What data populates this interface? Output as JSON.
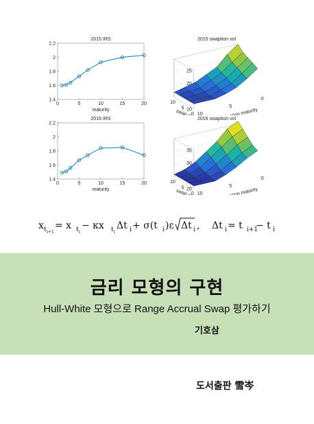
{
  "cover": {
    "title": "금리 모형의 구현",
    "subtitle": "Hull-White 모형으로 Range Accrual Swap 평가하기",
    "author": "기호삼",
    "publisher": "도서출판 雪岑"
  },
  "equation": {
    "lhs": "x",
    "lhs_sub": "t",
    "lhs_subsub": "i+1",
    "eq1": " = x",
    "t1_sub": "t",
    "t1_subsub": "i",
    "minus_k": " − κx",
    "t2_sub": "t",
    "t2_subsub": "i",
    "dt_sigma": "Δt",
    "dt_sigma_sub": "i",
    "plus_sigma": " + σ(t",
    "sigma_sub": "i",
    "sigma_close": ")ε",
    "sqrt_dt": "Δt",
    "sqrt_dt_sub": "i",
    "comma": ",",
    "def_lhs": "Δt",
    "def_lhs_sub": "i",
    "def_eq": " = t",
    "def_t1_sub": "i+1",
    "def_minus": " − t",
    "def_t2_sub": "i"
  },
  "chart_data": [
    {
      "type": "line",
      "title": "2015 IRS",
      "xlabel": "maturity",
      "ylabel": "",
      "x": [
        1,
        2,
        3,
        5,
        7,
        10,
        15,
        20
      ],
      "values": [
        1.6,
        1.61,
        1.64,
        1.73,
        1.82,
        1.93,
        2.0,
        2.03
      ],
      "xlim": [
        0,
        20
      ],
      "ylim": [
        1.4,
        2.2
      ],
      "xticks": [
        "0",
        "5",
        "10",
        "15",
        "20"
      ],
      "yticks": [
        "1.4",
        "1.6",
        "1.8",
        "2",
        "2.2"
      ],
      "color": "#0072bd"
    },
    {
      "type": "line",
      "title": "2016 IRS",
      "xlabel": "maturity",
      "ylabel": "",
      "x": [
        1,
        2,
        3,
        5,
        7,
        10,
        15,
        20
      ],
      "values": [
        1.49,
        1.51,
        1.56,
        1.67,
        1.74,
        1.84,
        1.85,
        1.74
      ],
      "xlim": [
        0,
        20
      ],
      "ylim": [
        1.4,
        2.2
      ],
      "xticks": [
        "0",
        "5",
        "10",
        "15",
        "20"
      ],
      "yticks": [
        "1.4",
        "1.6",
        "1.8",
        "2",
        "2.2"
      ],
      "color": "#0072bd"
    },
    {
      "type": "surface",
      "title": "2015 swaption vol",
      "xlabel": "swap maturity",
      "ylabel": "option maturity",
      "zticks": [
        "10",
        "15",
        "20",
        "25"
      ],
      "xticks": [
        "0",
        "5",
        "10"
      ],
      "yticks": [
        "0",
        "5",
        "10"
      ],
      "zlim": [
        10,
        25
      ],
      "grid": [
        [
          12,
          13,
          14,
          16,
          18,
          22,
          25
        ],
        [
          12,
          12.5,
          13,
          15,
          17,
          20,
          23
        ],
        [
          12,
          12,
          12.5,
          14,
          16,
          19,
          22
        ],
        [
          12,
          12,
          12,
          13.5,
          15,
          18,
          21
        ],
        [
          12,
          12,
          12,
          13,
          14.5,
          17,
          20
        ]
      ]
    },
    {
      "type": "surface",
      "title": "2016 swaption vol",
      "xlabel": "swap maturity",
      "ylabel": "option maturity",
      "zticks": [
        "20",
        "25",
        "30",
        "35"
      ],
      "xticks": [
        "0",
        "5",
        "10"
      ],
      "yticks": [
        "0",
        "5",
        "10"
      ],
      "zlim": [
        20,
        35
      ],
      "grid": [
        [
          21,
          22,
          24,
          27,
          30,
          34,
          36
        ],
        [
          21,
          21.5,
          23,
          26,
          29,
          32,
          34
        ],
        [
          21,
          21,
          22,
          24.5,
          27,
          30,
          32
        ],
        [
          21,
          21,
          21.5,
          23,
          25.5,
          28,
          30
        ],
        [
          21,
          21,
          21,
          22.5,
          24.5,
          27,
          29
        ]
      ]
    }
  ]
}
